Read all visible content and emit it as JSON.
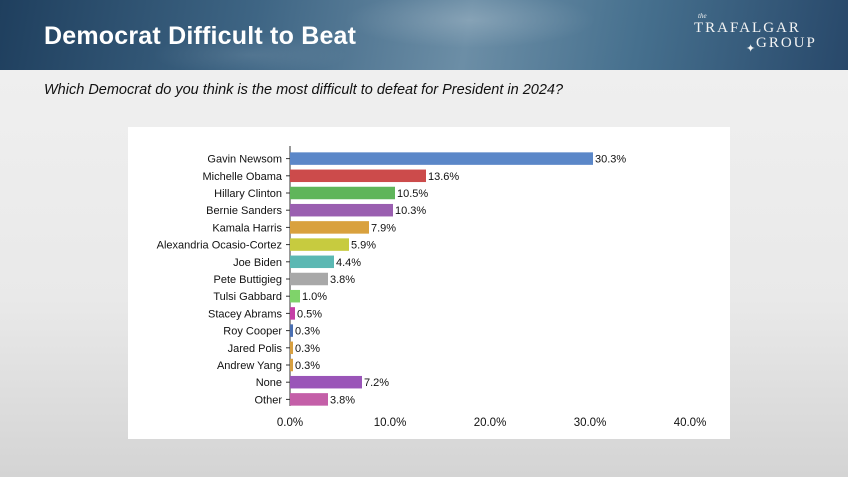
{
  "slide": {
    "title": "Democrat Difficult to Beat",
    "question": "Which Democrat do you think is the most difficult to defeat for President in 2024?"
  },
  "logo": {
    "the": "the",
    "line1": "TRAFALGAR",
    "line2": "GROUP",
    "star_icon": "compass-star-icon"
  },
  "colors": {
    "header_dark": "#1f3f5e",
    "header_light": "#6c8ea6"
  },
  "chart_data": {
    "type": "bar",
    "orientation": "horizontal",
    "title": "",
    "xlabel": "",
    "ylabel": "",
    "xlim": [
      0,
      40
    ],
    "ticks": [
      "0.0%",
      "10.0%",
      "20.0%",
      "30.0%",
      "40.0%"
    ],
    "grid": false,
    "categories": [
      "Gavin Newsom",
      "Michelle Obama",
      "Hillary Clinton",
      "Bernie Sanders",
      "Kamala Harris",
      "Alexandria Ocasio-Cortez",
      "Joe Biden",
      "Pete Buttigieg",
      "Tulsi Gabbard",
      "Stacey Abrams",
      "Roy Cooper",
      "Jared Polis",
      "Andrew Yang",
      "None",
      "Other"
    ],
    "values": [
      30.3,
      13.6,
      10.5,
      10.3,
      7.9,
      5.9,
      4.4,
      3.8,
      1.0,
      0.5,
      0.3,
      0.3,
      0.3,
      7.2,
      3.8
    ],
    "labels": [
      "30.3%",
      "13.6%",
      "10.5%",
      "10.3%",
      "7.9%",
      "5.9%",
      "4.4%",
      "3.8%",
      "1.0%",
      "0.5%",
      "0.3%",
      "0.3%",
      "0.3%",
      "7.2%",
      "3.8%"
    ],
    "colors": [
      "#5b87c8",
      "#cc4b4b",
      "#5fb55a",
      "#9a5fb0",
      "#d9a13e",
      "#c7cb3f",
      "#5bb8b3",
      "#a8a8a8",
      "#7fd36a",
      "#c53fa6",
      "#4a6fb2",
      "#d8a040",
      "#d8a040",
      "#9a55b8",
      "#c45fa8"
    ]
  }
}
